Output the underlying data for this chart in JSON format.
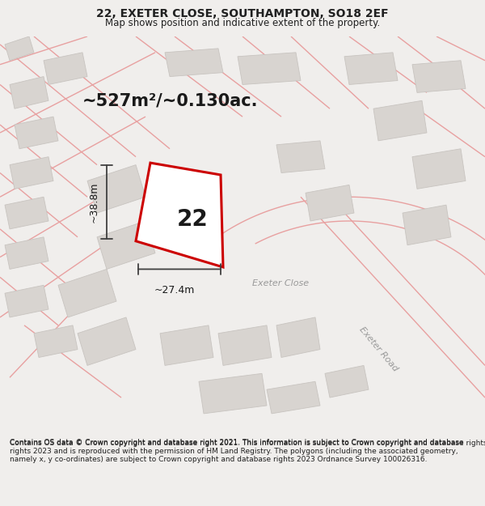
{
  "title_line1": "22, EXETER CLOSE, SOUTHAMPTON, SO18 2EF",
  "title_line2": "Map shows position and indicative extent of the property.",
  "area_label": "~527m²/~0.130ac.",
  "property_number": "22",
  "dim_height": "~38.8m",
  "dim_width": "~27.4m",
  "road_label1": "Exeter Close",
  "road_label2": "Exeter Road",
  "footer_text": "Contains OS data © Crown copyright and database right 2021. This information is subject to Crown copyright and database rights 2023 and is reproduced with the permission of HM Land Registry. The polygons (including the associated geometry, namely x, y co-ordinates) are subject to Crown copyright and database rights 2023 Ordnance Survey 100026316.",
  "bg_color": "#f0eeec",
  "map_bg": "#ffffff",
  "plot_color": "#cc0000",
  "road_line_color": "#e8a0a0",
  "road_fill_color": "#ffffff",
  "building_fill": "#d8d4d0",
  "building_edge": "#c8c4c0",
  "highlight_fill": "#ffffff",
  "dim_line_color": "#404040",
  "text_color": "#202020",
  "footer_color": "#202020",
  "title_fontsize": 10,
  "subtitle_fontsize": 8.5,
  "area_fontsize": 15,
  "propnum_fontsize": 20,
  "dim_fontsize": 9,
  "road_label_fontsize": 8,
  "footer_fontsize": 6.5,
  "figsize": [
    6.0,
    6.25
  ],
  "dpi": 100
}
